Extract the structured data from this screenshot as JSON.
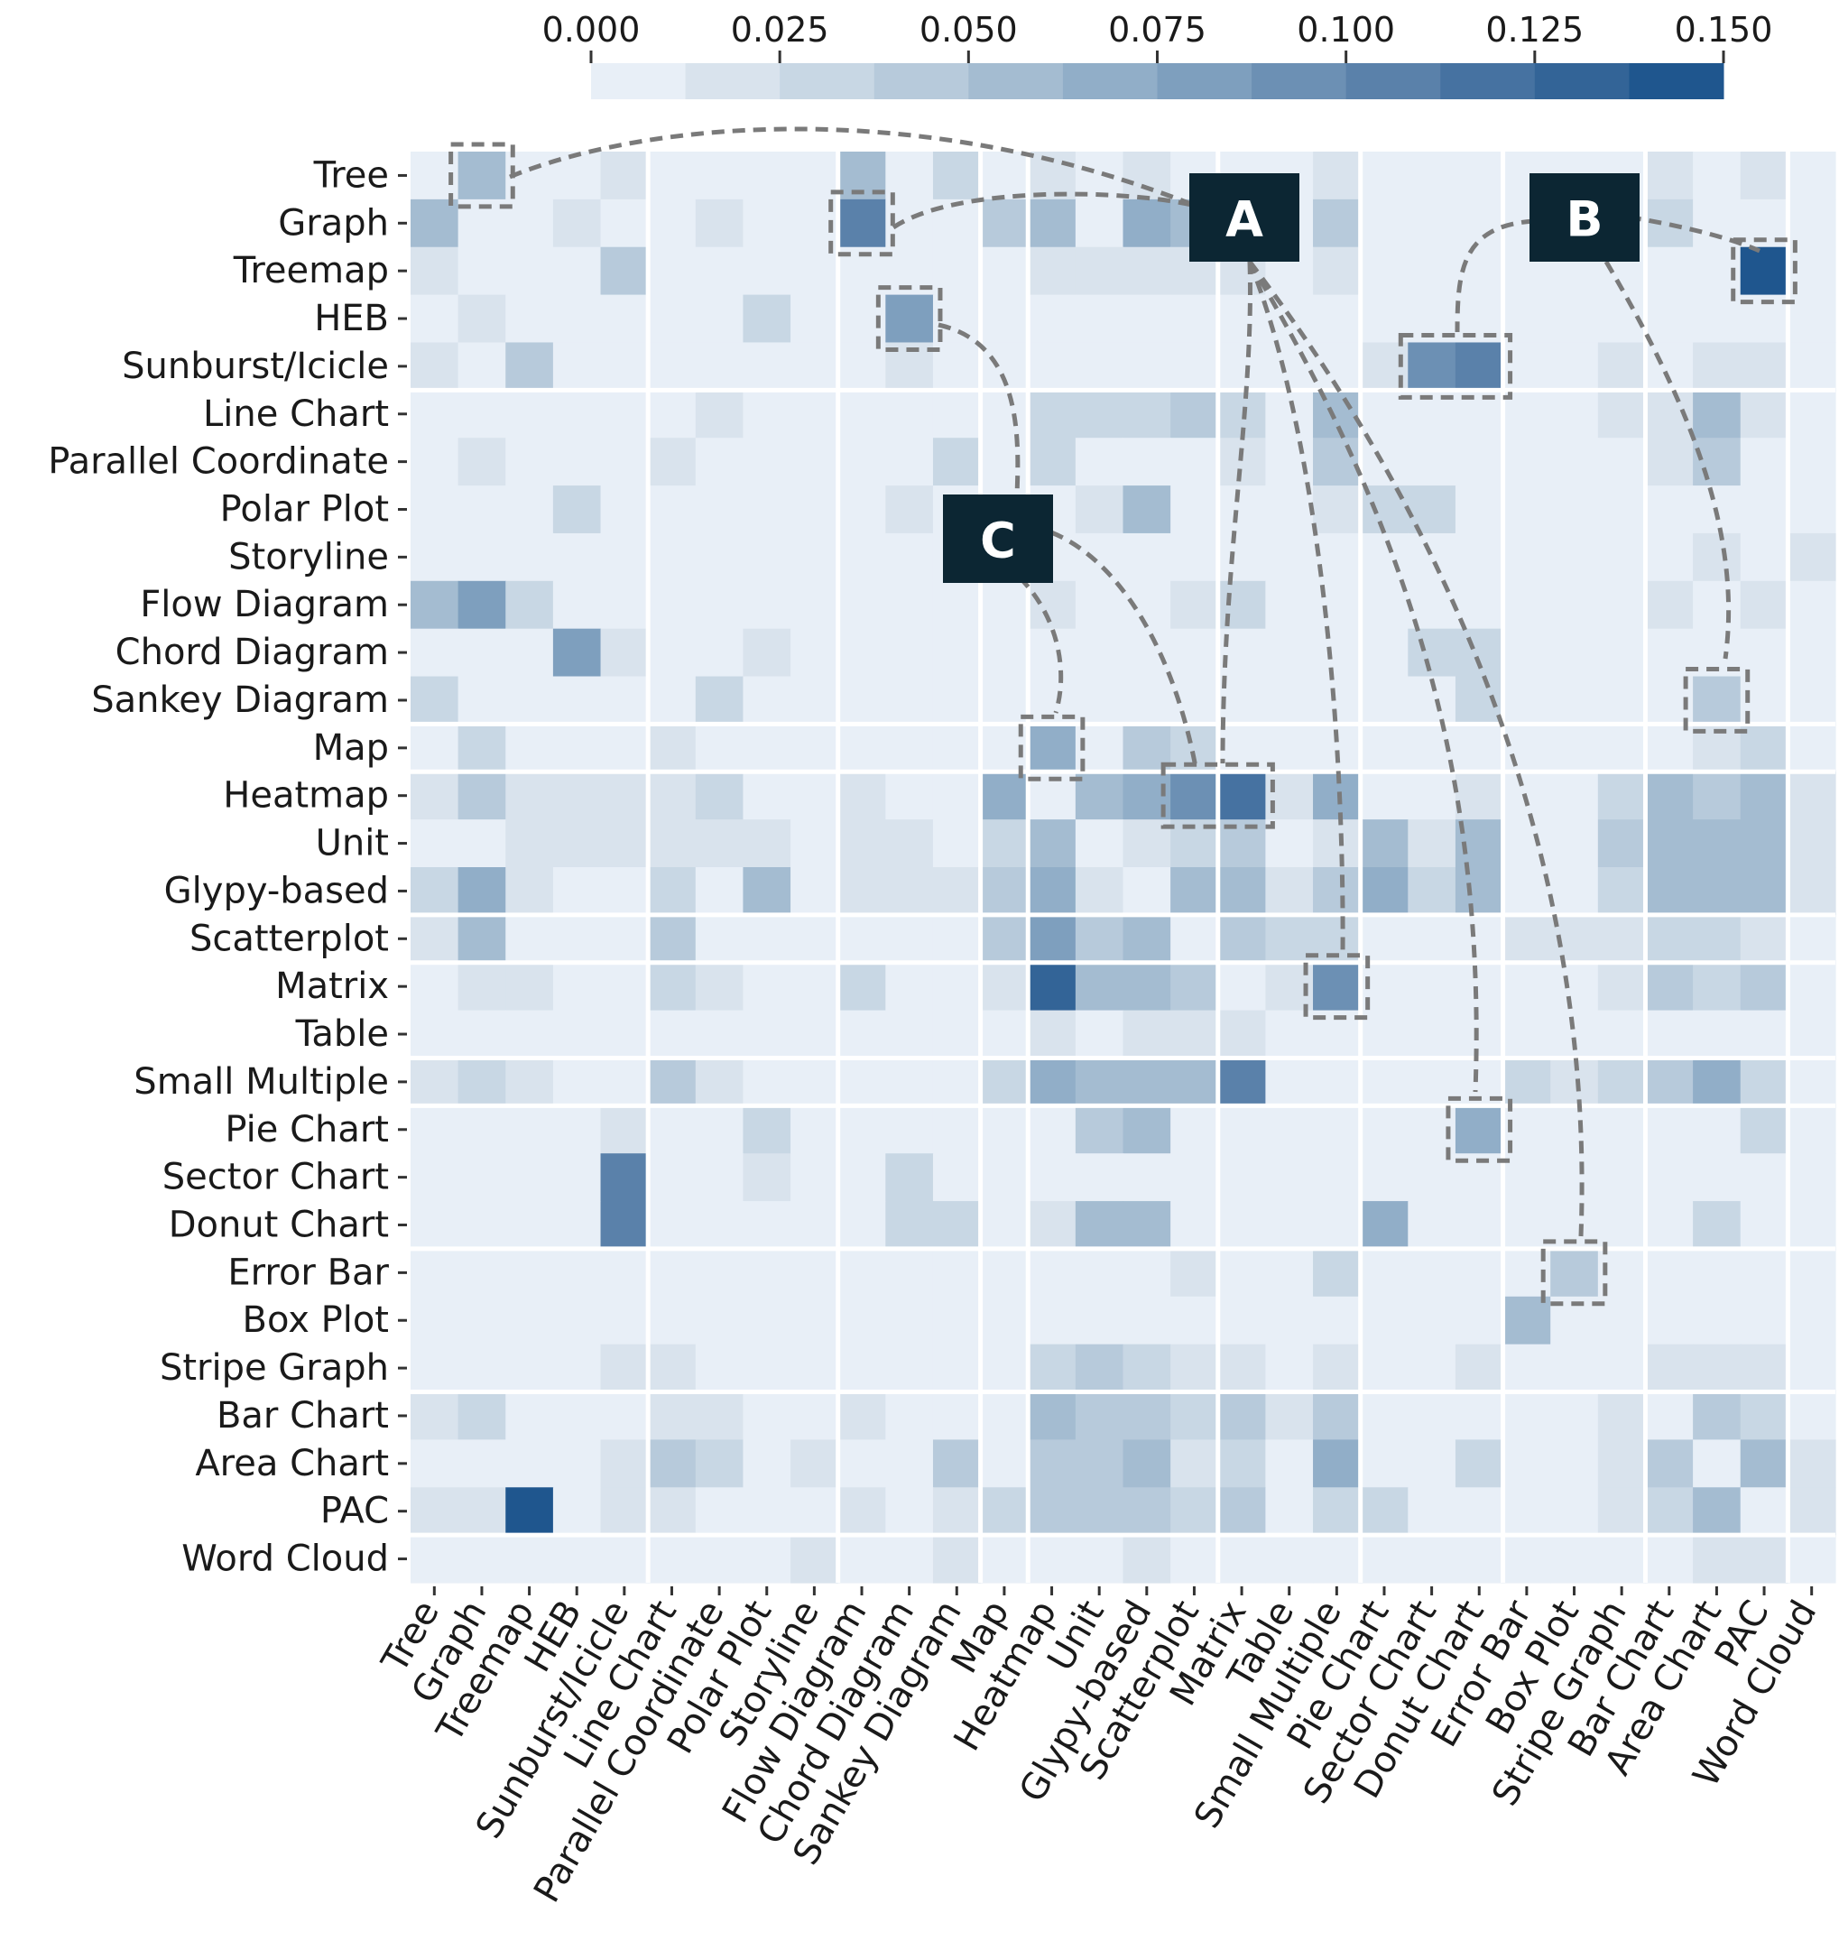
{
  "chart_data": {
    "type": "heatmap",
    "title": "",
    "xlabel": "",
    "ylabel": "",
    "categories": [
      "Tree",
      "Graph",
      "Treemap",
      "HEB",
      "Sunburst/Icicle",
      "Line Chart",
      "Parallel Coordinate",
      "Polar Plot",
      "Storyline",
      "Flow Diagram",
      "Chord Diagram",
      "Sankey Diagram",
      "Map",
      "Heatmap",
      "Unit",
      "Glypy-based",
      "Scatterplot",
      "Matrix",
      "Table",
      "Small Multiple",
      "Pie Chart",
      "Sector Chart",
      "Donut Chart",
      "Error Bar",
      "Box Plot",
      "Stripe Graph",
      "Bar Chart",
      "Area Chart",
      "PAC",
      "Word Cloud"
    ],
    "colorbar": {
      "ticks": [
        "0.000",
        "0.025",
        "0.050",
        "0.075",
        "0.100",
        "0.125",
        "0.150"
      ],
      "range": [
        0,
        0.15
      ],
      "colors": [
        "#e8eff7",
        "#d9e3ed",
        "#c8d7e4",
        "#b7cadb",
        "#a4bcd1",
        "#91aec8",
        "#7e9fbe",
        "#6c90b4",
        "#5a81aa",
        "#4672a1",
        "#336497",
        "#1f568e"
      ]
    },
    "matrix": [
      [
        0.005,
        0.06,
        0.01,
        0.01,
        0.02,
        0.005,
        0.01,
        0.005,
        0.005,
        0.06,
        0.01,
        0.03,
        0.01,
        0.02,
        0.01,
        0.02,
        0.005,
        0.005,
        0.005,
        0.02,
        0.005,
        0.005,
        0.005,
        0.005,
        0.005,
        0.01,
        0.02,
        0.01,
        0.02,
        0.005
      ],
      [
        0.06,
        0.005,
        0.01,
        0.02,
        0.01,
        0.01,
        0.02,
        0.005,
        0.005,
        0.11,
        0.005,
        0.005,
        0.04,
        0.05,
        0.01,
        0.07,
        0.06,
        0.04,
        0.01,
        0.04,
        0.005,
        0.005,
        0.005,
        0.005,
        0.005,
        0.01,
        0.03,
        0.01,
        0.01,
        0.005
      ],
      [
        0.02,
        0.01,
        0.005,
        0.005,
        0.04,
        0.005,
        0.005,
        0.005,
        0.005,
        0.005,
        0.005,
        0.005,
        0.005,
        0.02,
        0.02,
        0.02,
        0.02,
        0.02,
        0.005,
        0.02,
        0.005,
        0.005,
        0.005,
        0.005,
        0.005,
        0.005,
        0.01,
        0.005,
        0.14,
        0.005
      ],
      [
        0.01,
        0.02,
        0.005,
        0.005,
        0.01,
        0.005,
        0.005,
        0.03,
        0.005,
        0.005,
        0.08,
        0.005,
        0.01,
        0.01,
        0.01,
        0.005,
        0.005,
        0.005,
        0.005,
        0.005,
        0.005,
        0.005,
        0.005,
        0.005,
        0.005,
        0.005,
        0.005,
        0.005,
        0.005,
        0.005
      ],
      [
        0.02,
        0.01,
        0.04,
        0.01,
        0.005,
        0.005,
        0.005,
        0.01,
        0.005,
        0.005,
        0.02,
        0.005,
        0.005,
        0.01,
        0.01,
        0.01,
        0.005,
        0.005,
        0.005,
        0.005,
        0.02,
        0.09,
        0.1,
        0.005,
        0.005,
        0.02,
        0.01,
        0.02,
        0.02,
        0.005
      ],
      [
        0.005,
        0.01,
        0.005,
        0.005,
        0.005,
        0.005,
        0.02,
        0.005,
        0.005,
        0.01,
        0.005,
        0.01,
        0.01,
        0.03,
        0.03,
        0.03,
        0.04,
        0.03,
        0.01,
        0.05,
        0.005,
        0.005,
        0.005,
        0.005,
        0.005,
        0.02,
        0.02,
        0.05,
        0.02,
        0.005
      ],
      [
        0.01,
        0.02,
        0.005,
        0.005,
        0.005,
        0.02,
        0.005,
        0.005,
        0.005,
        0.005,
        0.005,
        0.03,
        0.005,
        0.03,
        0.01,
        0.005,
        0.01,
        0.02,
        0.005,
        0.04,
        0.005,
        0.005,
        0.01,
        0.005,
        0.005,
        0.01,
        0.02,
        0.04,
        0.01,
        0.005
      ],
      [
        0.005,
        0.005,
        0.005,
        0.03,
        0.01,
        0.005,
        0.005,
        0.005,
        0.01,
        0.005,
        0.02,
        0.005,
        0.005,
        0.01,
        0.02,
        0.05,
        0.005,
        0.005,
        0.005,
        0.02,
        0.03,
        0.03,
        0.005,
        0.005,
        0.005,
        0.005,
        0.005,
        0.01,
        0.005,
        0.005
      ],
      [
        0.005,
        0.005,
        0.005,
        0.005,
        0.005,
        0.005,
        0.005,
        0.01,
        0.005,
        0.005,
        0.005,
        0.005,
        0.005,
        0.005,
        0.005,
        0.005,
        0.005,
        0.005,
        0.005,
        0.005,
        0.005,
        0.005,
        0.01,
        0.005,
        0.005,
        0.005,
        0.005,
        0.02,
        0.005,
        0.02
      ],
      [
        0.05,
        0.08,
        0.03,
        0.005,
        0.005,
        0.01,
        0.005,
        0.005,
        0.005,
        0.005,
        0.005,
        0.01,
        0.01,
        0.02,
        0.01,
        0.01,
        0.02,
        0.03,
        0.01,
        0.01,
        0.005,
        0.005,
        0.01,
        0.005,
        0.005,
        0.005,
        0.02,
        0.01,
        0.02,
        0.005
      ],
      [
        0.005,
        0.01,
        0.005,
        0.08,
        0.02,
        0.005,
        0.005,
        0.02,
        0.005,
        0.005,
        0.005,
        0.005,
        0.005,
        0.005,
        0.01,
        0.01,
        0.005,
        0.005,
        0.005,
        0.005,
        0.005,
        0.03,
        0.03,
        0.005,
        0.005,
        0.01,
        0.005,
        0.005,
        0.005,
        0.005
      ],
      [
        0.03,
        0.01,
        0.005,
        0.01,
        0.01,
        0.01,
        0.03,
        0.005,
        0.01,
        0.01,
        0.005,
        0.005,
        0.01,
        0.005,
        0.01,
        0.005,
        0.005,
        0.01,
        0.005,
        0.005,
        0.005,
        0.005,
        0.03,
        0.005,
        0.005,
        0.01,
        0.005,
        0.04,
        0.01,
        0.005
      ],
      [
        0.01,
        0.03,
        0.005,
        0.01,
        0.005,
        0.02,
        0.005,
        0.005,
        0.005,
        0.01,
        0.005,
        0.01,
        0.005,
        0.07,
        0.01,
        0.04,
        0.03,
        0.005,
        0.005,
        0.005,
        0.005,
        0.005,
        0.005,
        0.005,
        0.005,
        0.01,
        0.01,
        0.02,
        0.03,
        0.005
      ],
      [
        0.02,
        0.04,
        0.02,
        0.02,
        0.02,
        0.02,
        0.03,
        0.01,
        0.005,
        0.02,
        0.005,
        0.01,
        0.07,
        0.005,
        0.06,
        0.07,
        0.09,
        0.12,
        0.02,
        0.07,
        0.01,
        0.01,
        0.02,
        0.005,
        0.01,
        0.03,
        0.06,
        0.04,
        0.05,
        0.02
      ],
      [
        0.01,
        0.01,
        0.02,
        0.02,
        0.02,
        0.02,
        0.02,
        0.02,
        0.005,
        0.02,
        0.02,
        0.01,
        0.03,
        0.06,
        0.005,
        0.02,
        0.03,
        0.04,
        0.01,
        0.02,
        0.05,
        0.02,
        0.06,
        0.005,
        0.01,
        0.04,
        0.05,
        0.05,
        0.06,
        0.02
      ],
      [
        0.03,
        0.07,
        0.02,
        0.005,
        0.01,
        0.03,
        0.01,
        0.06,
        0.005,
        0.02,
        0.02,
        0.02,
        0.04,
        0.07,
        0.02,
        0.005,
        0.06,
        0.06,
        0.02,
        0.04,
        0.07,
        0.03,
        0.06,
        0.005,
        0.005,
        0.03,
        0.05,
        0.05,
        0.05,
        0.02
      ],
      [
        0.02,
        0.05,
        0.01,
        0.005,
        0.005,
        0.04,
        0.01,
        0.005,
        0.005,
        0.01,
        0.005,
        0.005,
        0.04,
        0.08,
        0.04,
        0.06,
        0.005,
        0.04,
        0.03,
        0.03,
        0.005,
        0.005,
        0.005,
        0.02,
        0.02,
        0.02,
        0.03,
        0.03,
        0.02,
        0.005
      ],
      [
        0.01,
        0.02,
        0.02,
        0.005,
        0.005,
        0.03,
        0.02,
        0.005,
        0.005,
        0.03,
        0.005,
        0.01,
        0.02,
        0.13,
        0.05,
        0.06,
        0.04,
        0.005,
        0.02,
        0.09,
        0.005,
        0.005,
        0.005,
        0.005,
        0.01,
        0.02,
        0.04,
        0.03,
        0.04,
        0.005
      ],
      [
        0.01,
        0.01,
        0.005,
        0.005,
        0.005,
        0.01,
        0.005,
        0.005,
        0.005,
        0.01,
        0.005,
        0.005,
        0.005,
        0.02,
        0.005,
        0.02,
        0.02,
        0.02,
        0.005,
        0.01,
        0.005,
        0.005,
        0.005,
        0.005,
        0.005,
        0.01,
        0.01,
        0.01,
        0.01,
        0.005
      ],
      [
        0.02,
        0.03,
        0.02,
        0.005,
        0.005,
        0.04,
        0.02,
        0.01,
        0.005,
        0.005,
        0.005,
        0.01,
        0.03,
        0.07,
        0.05,
        0.06,
        0.06,
        0.1,
        0.01,
        0.005,
        0.005,
        0.005,
        0.005,
        0.03,
        0.02,
        0.03,
        0.04,
        0.07,
        0.03,
        0.005
      ],
      [
        0.005,
        0.005,
        0.005,
        0.005,
        0.02,
        0.005,
        0.005,
        0.03,
        0.005,
        0.005,
        0.005,
        0.005,
        0.005,
        0.01,
        0.04,
        0.05,
        0.005,
        0.005,
        0.005,
        0.005,
        0.005,
        0.005,
        0.07,
        0.005,
        0.005,
        0.005,
        0.005,
        0.01,
        0.03,
        0.005
      ],
      [
        0.005,
        0.005,
        0.005,
        0.005,
        0.1,
        0.005,
        0.005,
        0.02,
        0.005,
        0.005,
        0.03,
        0.005,
        0.005,
        0.005,
        0.005,
        0.01,
        0.005,
        0.005,
        0.005,
        0.005,
        0.005,
        0.005,
        0.01,
        0.005,
        0.005,
        0.01,
        0.005,
        0.005,
        0.01,
        0.005
      ],
      [
        0.005,
        0.01,
        0.01,
        0.01,
        0.11,
        0.01,
        0.01,
        0.005,
        0.01,
        0.01,
        0.03,
        0.03,
        0.01,
        0.02,
        0.05,
        0.05,
        0.01,
        0.01,
        0.005,
        0.005,
        0.07,
        0.01,
        0.005,
        0.005,
        0.005,
        0.01,
        0.01,
        0.03,
        0.01,
        0.005
      ],
      [
        0.005,
        0.005,
        0.005,
        0.005,
        0.005,
        0.01,
        0.005,
        0.005,
        0.005,
        0.005,
        0.005,
        0.005,
        0.005,
        0.005,
        0.005,
        0.005,
        0.02,
        0.005,
        0.005,
        0.03,
        0.005,
        0.005,
        0.005,
        0.005,
        0.04,
        0.005,
        0.005,
        0.005,
        0.005,
        0.005
      ],
      [
        0.005,
        0.005,
        0.005,
        0.005,
        0.005,
        0.005,
        0.005,
        0.005,
        0.005,
        0.005,
        0.005,
        0.005,
        0.005,
        0.005,
        0.01,
        0.005,
        0.01,
        0.01,
        0.005,
        0.01,
        0.005,
        0.005,
        0.005,
        0.05,
        0.005,
        0.01,
        0.005,
        0.005,
        0.01,
        0.005
      ],
      [
        0.01,
        0.005,
        0.005,
        0.005,
        0.02,
        0.02,
        0.01,
        0.005,
        0.005,
        0.005,
        0.01,
        0.01,
        0.01,
        0.03,
        0.04,
        0.03,
        0.02,
        0.02,
        0.01,
        0.02,
        0.005,
        0.01,
        0.02,
        0.005,
        0.01,
        0.005,
        0.02,
        0.02,
        0.02,
        0.005
      ],
      [
        0.02,
        0.03,
        0.01,
        0.005,
        0.01,
        0.02,
        0.02,
        0.005,
        0.005,
        0.02,
        0.005,
        0.01,
        0.01,
        0.05,
        0.04,
        0.04,
        0.03,
        0.04,
        0.02,
        0.04,
        0.005,
        0.005,
        0.01,
        0.01,
        0.01,
        0.02,
        0.005,
        0.04,
        0.03,
        0.005
      ],
      [
        0.01,
        0.01,
        0.01,
        0.005,
        0.02,
        0.04,
        0.03,
        0.01,
        0.02,
        0.01,
        0.01,
        0.04,
        0.01,
        0.04,
        0.04,
        0.05,
        0.02,
        0.03,
        0.01,
        0.07,
        0.01,
        0.005,
        0.03,
        0.01,
        0.01,
        0.02,
        0.04,
        0.005,
        0.06,
        0.02
      ],
      [
        0.02,
        0.02,
        0.14,
        0.005,
        0.02,
        0.02,
        0.01,
        0.01,
        0.005,
        0.02,
        0.01,
        0.02,
        0.03,
        0.04,
        0.04,
        0.04,
        0.03,
        0.04,
        0.01,
        0.03,
        0.03,
        0.01,
        0.01,
        0.005,
        0.01,
        0.02,
        0.03,
        0.06,
        0.005,
        0.02
      ],
      [
        0.01,
        0.01,
        0.01,
        0.005,
        0.005,
        0.005,
        0.005,
        0.005,
        0.02,
        0.005,
        0.01,
        0.02,
        0.005,
        0.01,
        0.01,
        0.02,
        0.01,
        0.005,
        0.005,
        0.01,
        0.005,
        0.005,
        0.01,
        0.005,
        0.005,
        0.005,
        0.005,
        0.02,
        0.02,
        0.005
      ]
    ],
    "highlights": [
      {
        "label": "A",
        "cells": [
          [
            0,
            1
          ],
          [
            1,
            9
          ],
          [
            13,
            16
          ],
          [
            13,
            17
          ],
          [
            17,
            19
          ]
        ]
      },
      {
        "label": "B",
        "cells": [
          [
            4,
            21
          ],
          [
            4,
            22
          ],
          [
            2,
            28
          ],
          [
            11,
            27
          ]
        ]
      },
      {
        "label": "C",
        "cells": [
          [
            3,
            10
          ],
          [
            12,
            13
          ]
        ]
      },
      {
        "label": "",
        "cells": [
          [
            20,
            22
          ],
          [
            23,
            24
          ]
        ]
      }
    ],
    "annotations": [
      {
        "label": "A"
      },
      {
        "label": "B"
      },
      {
        "label": "C"
      }
    ]
  }
}
